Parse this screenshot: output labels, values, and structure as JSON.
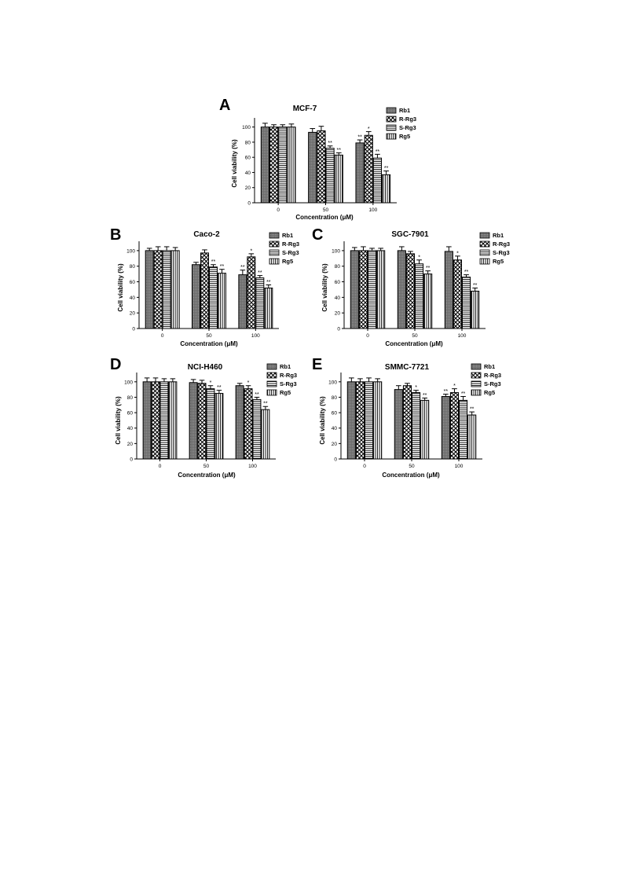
{
  "figure": {
    "shared": {
      "xlabel": "Concentration (μM)",
      "ylabel": "Cell viability (%)",
      "categories": [
        "0",
        "50",
        "100"
      ],
      "yticks": [
        0,
        20,
        40,
        60,
        80,
        100
      ],
      "series_names": [
        "Rb1",
        "R-Rg3",
        "S-Rg3",
        "Rg5"
      ]
    }
  },
  "chart_data": [
    {
      "panel": "A",
      "type": "bar",
      "title": "MCF-7",
      "xlabel": "Concentration (μM)",
      "ylabel": "Cell viability (%)",
      "ylim": [
        0,
        110
      ],
      "grid": false,
      "legend": "top-right",
      "categories": [
        "0",
        "50",
        "100"
      ],
      "series": [
        {
          "name": "Rb1",
          "values": [
            100,
            93,
            79
          ],
          "errors": [
            5,
            5,
            4
          ],
          "sig": [
            "",
            "",
            "**"
          ]
        },
        {
          "name": "R-Rg3",
          "values": [
            100,
            95,
            89
          ],
          "errors": [
            3,
            6,
            5
          ],
          "sig": [
            "",
            "",
            "*"
          ]
        },
        {
          "name": "S-Rg3",
          "values": [
            100,
            72,
            59
          ],
          "errors": [
            3,
            3,
            5
          ],
          "sig": [
            "",
            "**",
            "**"
          ]
        },
        {
          "name": "Rg5",
          "values": [
            100,
            63,
            37
          ],
          "errors": [
            4,
            3,
            5
          ],
          "sig": [
            "",
            "**",
            "**"
          ]
        }
      ]
    },
    {
      "panel": "B",
      "type": "bar",
      "title": "Caco-2",
      "xlabel": "Concentration (μM)",
      "ylabel": "Cell viability (%)",
      "ylim": [
        0,
        110
      ],
      "grid": false,
      "legend": "top-right",
      "categories": [
        "0",
        "50",
        "100"
      ],
      "series": [
        {
          "name": "Rb1",
          "values": [
            100,
            82,
            69
          ],
          "errors": [
            3,
            3,
            6
          ],
          "sig": [
            "",
            "",
            "**"
          ]
        },
        {
          "name": "R-Rg3",
          "values": [
            100,
            97,
            92
          ],
          "errors": [
            5,
            4,
            4
          ],
          "sig": [
            "",
            "",
            "*"
          ]
        },
        {
          "name": "S-Rg3",
          "values": [
            100,
            79,
            65
          ],
          "errors": [
            5,
            3,
            3
          ],
          "sig": [
            "",
            "**",
            "**"
          ]
        },
        {
          "name": "Rg5",
          "values": [
            100,
            71,
            52
          ],
          "errors": [
            4,
            5,
            4
          ],
          "sig": [
            "",
            "**",
            "**"
          ]
        }
      ]
    },
    {
      "panel": "C",
      "type": "bar",
      "title": "SGC-7901",
      "xlabel": "Concentration (μM)",
      "ylabel": "Cell viability (%)",
      "ylim": [
        0,
        110
      ],
      "grid": false,
      "legend": "top-right",
      "categories": [
        "0",
        "50",
        "100"
      ],
      "series": [
        {
          "name": "Rb1",
          "values": [
            100,
            100,
            99
          ],
          "errors": [
            4,
            5,
            6
          ],
          "sig": [
            "",
            "",
            ""
          ]
        },
        {
          "name": "R-Rg3",
          "values": [
            100,
            96,
            88
          ],
          "errors": [
            5,
            3,
            5
          ],
          "sig": [
            "",
            "",
            "*"
          ]
        },
        {
          "name": "S-Rg3",
          "values": [
            100,
            83,
            66
          ],
          "errors": [
            3,
            5,
            3
          ],
          "sig": [
            "",
            "*",
            "**"
          ]
        },
        {
          "name": "Rg5",
          "values": [
            100,
            70,
            48
          ],
          "errors": [
            3,
            4,
            4
          ],
          "sig": [
            "",
            "**",
            "**"
          ]
        }
      ]
    },
    {
      "panel": "D",
      "type": "bar",
      "title": "NCI-H460",
      "xlabel": "Concentration (μM)",
      "ylabel": "Cell viability (%)",
      "ylim": [
        0,
        110
      ],
      "grid": false,
      "legend": "top-right",
      "categories": [
        "0",
        "50",
        "100"
      ],
      "series": [
        {
          "name": "Rb1",
          "values": [
            100,
            99,
            95
          ],
          "errors": [
            5,
            4,
            3
          ],
          "sig": [
            "",
            "",
            ""
          ]
        },
        {
          "name": "R-Rg3",
          "values": [
            100,
            98,
            91
          ],
          "errors": [
            5,
            4,
            4
          ],
          "sig": [
            "",
            "",
            "*"
          ]
        },
        {
          "name": "S-Rg3",
          "values": [
            100,
            91,
            77
          ],
          "errors": [
            4,
            4,
            3
          ],
          "sig": [
            "",
            "*",
            "**"
          ]
        },
        {
          "name": "Rg5",
          "values": [
            100,
            85,
            64
          ],
          "errors": [
            4,
            4,
            4
          ],
          "sig": [
            "",
            "**",
            "**"
          ]
        }
      ]
    },
    {
      "panel": "E",
      "type": "bar",
      "title": "SMMC-7721",
      "xlabel": "Concentration (μM)",
      "ylabel": "Cell viability (%)",
      "ylim": [
        0,
        110
      ],
      "grid": false,
      "legend": "top-right",
      "categories": [
        "0",
        "50",
        "100"
      ],
      "series": [
        {
          "name": "Rb1",
          "values": [
            100,
            90,
            81
          ],
          "errors": [
            5,
            5,
            3
          ],
          "sig": [
            "",
            "",
            "**"
          ]
        },
        {
          "name": "R-Rg3",
          "values": [
            100,
            95,
            86
          ],
          "errors": [
            4,
            3,
            5
          ],
          "sig": [
            "",
            "",
            "*"
          ]
        },
        {
          "name": "S-Rg3",
          "values": [
            100,
            86,
            76
          ],
          "errors": [
            5,
            3,
            5
          ],
          "sig": [
            "",
            "*",
            "**"
          ]
        },
        {
          "name": "Rg5",
          "values": [
            100,
            76,
            57
          ],
          "errors": [
            4,
            3,
            4
          ],
          "sig": [
            "",
            "**",
            "**"
          ]
        }
      ]
    }
  ]
}
